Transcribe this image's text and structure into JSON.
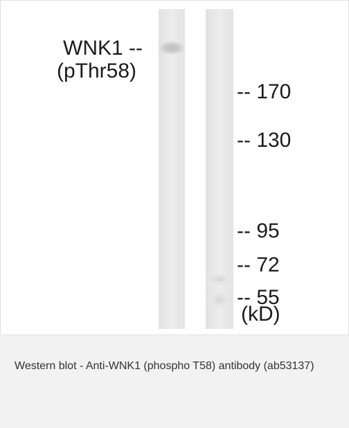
{
  "figure": {
    "protein_label_line1": "WNK1 --",
    "protein_label_line2": "(pThr58)",
    "markers": [
      {
        "label": "-- 170",
        "kda": 170
      },
      {
        "label": "-- 130",
        "kda": 130
      },
      {
        "label": "-- 95",
        "kda": 95
      },
      {
        "label": "-- 72",
        "kda": 72
      },
      {
        "label": "-- 55",
        "kda": 55
      }
    ],
    "unit_label": "(kD)",
    "colors": {
      "lane_background": "#ebebeb",
      "band": "#b9b9b9"
    }
  },
  "caption": {
    "text": "Western blot - Anti-WNK1 (phospho T58) antibody (ab53137)"
  }
}
